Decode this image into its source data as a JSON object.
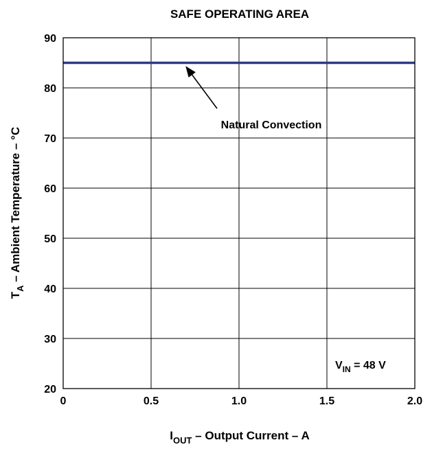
{
  "chart_data": {
    "type": "line",
    "title": "SAFE OPERATING AREA",
    "xlabel": {
      "main": "I",
      "sub": "OUT",
      "rest": " – Output Current  – A"
    },
    "ylabel": {
      "main": "T",
      "sub": "A",
      "rest": " – Ambient Temperature – °C"
    },
    "xlim": [
      0,
      2.0
    ],
    "ylim": [
      20,
      90
    ],
    "x_ticks": [
      0,
      0.5,
      1.0,
      1.5,
      2.0
    ],
    "x_tick_labels": [
      "0",
      "0.5",
      "1.0",
      "1.5",
      "2.0"
    ],
    "y_ticks": [
      20,
      30,
      40,
      50,
      60,
      70,
      80,
      90
    ],
    "y_tick_labels": [
      "20",
      "30",
      "40",
      "50",
      "60",
      "70",
      "80",
      "90"
    ],
    "grid": true,
    "series": [
      {
        "name": "Natural Convection",
        "color": "#2e3a87",
        "x": [
          0,
          2.0
        ],
        "y": [
          85,
          85
        ]
      }
    ],
    "annotations": [
      {
        "text": "Natural Convection",
        "arrow_target": {
          "x": 0.7,
          "y": 85
        }
      }
    ],
    "condition_label": {
      "main": "V",
      "sub": "IN",
      "rest": "  = 48 V"
    }
  }
}
